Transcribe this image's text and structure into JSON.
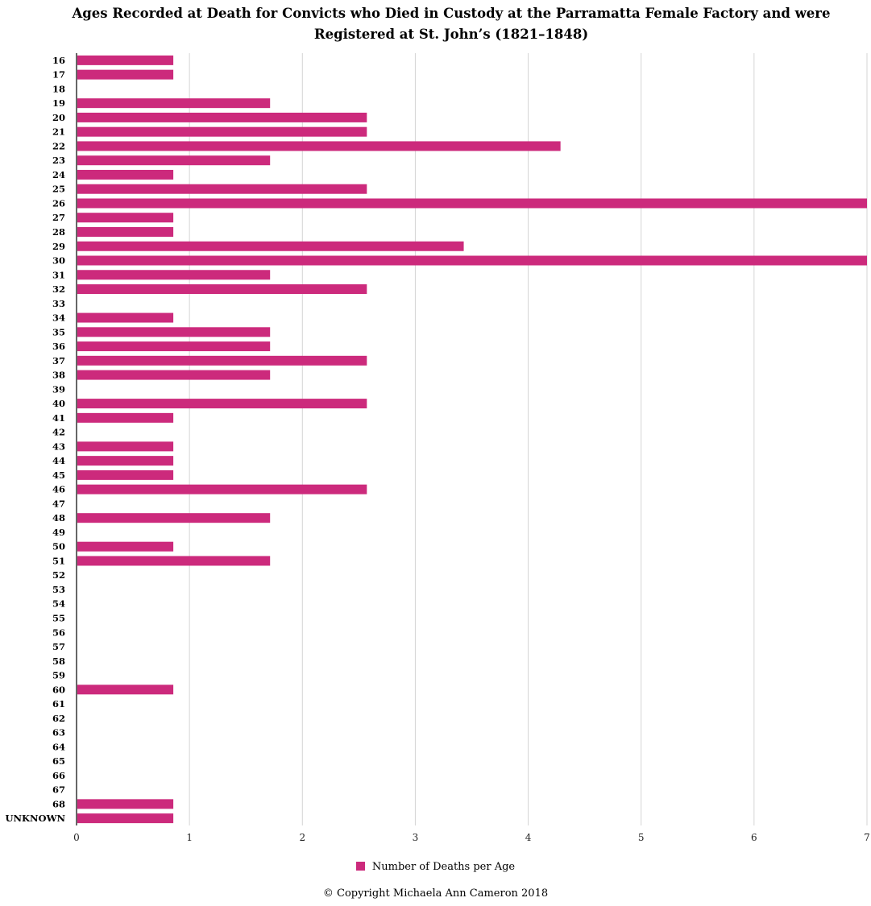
{
  "chart_data": {
    "type": "bar",
    "orientation": "horizontal",
    "title": "Ages Recorded at Death for Convicts who Died in Custody at the Parramatta Female Factory and were Registered at St. John’s (1821–1848)",
    "categories": [
      "16",
      "17",
      "18",
      "19",
      "20",
      "21",
      "22",
      "23",
      "24",
      "25",
      "26",
      "27",
      "28",
      "29",
      "30",
      "31",
      "32",
      "33",
      "34",
      "35",
      "36",
      "37",
      "38",
      "39",
      "40",
      "41",
      "42",
      "43",
      "44",
      "45",
      "46",
      "47",
      "48",
      "49",
      "50",
      "51",
      "52",
      "53",
      "54",
      "55",
      "56",
      "57",
      "58",
      "59",
      "60",
      "61",
      "62",
      "63",
      "64",
      "65",
      "66",
      "67",
      "68",
      "UNKNOWN"
    ],
    "series": [
      {
        "name": "Number of Deaths per Age",
        "color": "#cc2a7c",
        "values": [
          0.857,
          0.857,
          0,
          1.714,
          2.571,
          2.571,
          4.286,
          1.714,
          0.857,
          2.571,
          7,
          0.857,
          0.857,
          3.429,
          7,
          1.714,
          2.571,
          0,
          0.857,
          1.714,
          1.714,
          2.571,
          1.714,
          0,
          2.571,
          0.857,
          0,
          0.857,
          0.857,
          0.857,
          2.571,
          0,
          1.714,
          0,
          0.857,
          1.714,
          0,
          0,
          0,
          0,
          0,
          0,
          0,
          0,
          0.857,
          0,
          0,
          0,
          0,
          0,
          0,
          0,
          0.857,
          0.857
        ]
      }
    ],
    "xlim": [
      0,
      7
    ],
    "x_ticks": [
      "0",
      "1",
      "2",
      "3",
      "4",
      "5",
      "6",
      "7"
    ],
    "grid": true,
    "legend_position": "bottom"
  },
  "footer": {
    "copyright": "© Copyright Michaela Ann Cameron 2018"
  }
}
